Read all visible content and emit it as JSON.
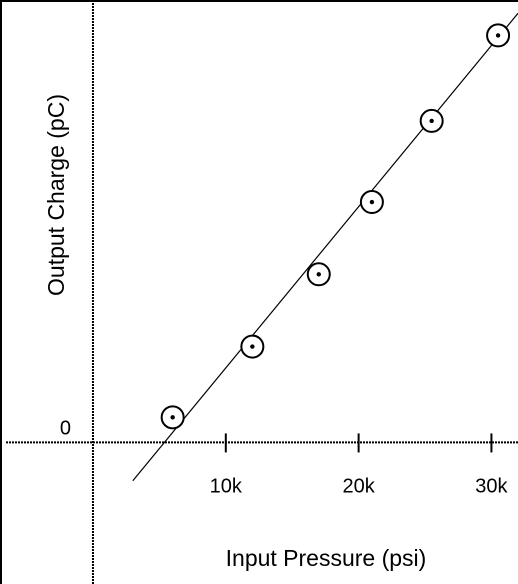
{
  "chart_data": {
    "type": "scatter",
    "title": "",
    "xlabel": "Input Pressure (psi)",
    "ylabel": "Output Charge (pC)",
    "x_ticks": [
      {
        "value": 10000,
        "label": "10k"
      },
      {
        "value": 20000,
        "label": "20k"
      },
      {
        "value": 30000,
        "label": "30k"
      }
    ],
    "y_ticks": [
      {
        "value": 0,
        "label": "0"
      }
    ],
    "xlim": [
      -7000,
      32000
    ],
    "ylim": [
      -96,
      300
    ],
    "grid": false,
    "legend": "none",
    "series": [
      {
        "points": [
          {
            "x": 6000,
            "y": 17
          },
          {
            "x": 12000,
            "y": 65
          },
          {
            "x": 17000,
            "y": 114
          },
          {
            "x": 21000,
            "y": 163
          },
          {
            "x": 25500,
            "y": 218
          },
          {
            "x": 30500,
            "y": 276
          }
        ]
      }
    ],
    "fit_line": {
      "x_start": 3000,
      "y_start": -26,
      "x_end": 32000,
      "y_end": 291
    },
    "colors": {
      "background": "#ffffff",
      "ink": "#000000"
    }
  }
}
